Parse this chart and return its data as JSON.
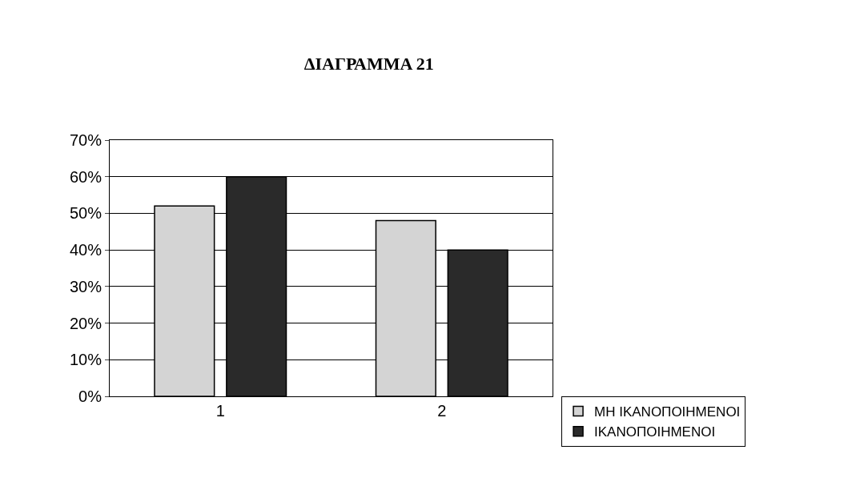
{
  "chart_data": {
    "type": "bar",
    "title": "ΔΙΑΓΡΑΜΜΑ 21",
    "categories": [
      "1",
      "2"
    ],
    "series": [
      {
        "name": "ΜΗ ΙΚΑΝΟΠΟΙΗΜΕΝΟΙ",
        "color": "#d4d4d4",
        "values": [
          52,
          48
        ]
      },
      {
        "name": "ΙΚΑΝΟΠΟΙΗΜΕΝΟΙ",
        "color": "#2a2a2a",
        "values": [
          60,
          40
        ]
      }
    ],
    "ylim": [
      0,
      70
    ],
    "yticks": [
      {
        "value": 0,
        "label": "0%"
      },
      {
        "value": 10,
        "label": "10%"
      },
      {
        "value": 20,
        "label": "20%"
      },
      {
        "value": 30,
        "label": "30%"
      },
      {
        "value": 40,
        "label": "40%"
      },
      {
        "value": 50,
        "label": "50%"
      },
      {
        "value": 60,
        "label": "60%"
      },
      {
        "value": 70,
        "label": "70%"
      }
    ],
    "grid": "y",
    "legend": "bottom right"
  }
}
